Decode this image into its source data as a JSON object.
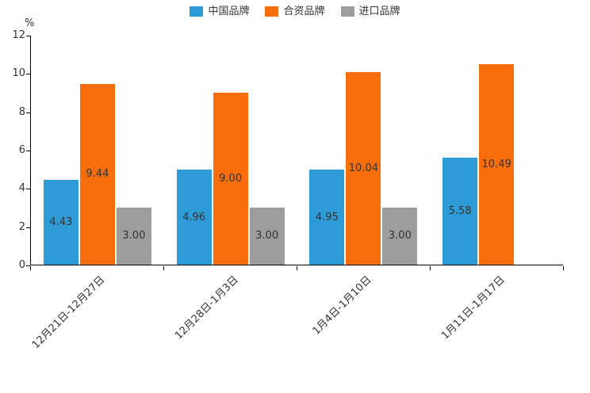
{
  "chart_data": {
    "type": "bar",
    "title": "",
    "xlabel": "",
    "ylabel": "%",
    "ylim": [
      0,
      12
    ],
    "yticks": [
      0,
      2,
      4,
      6,
      8,
      10,
      12
    ],
    "grid": false,
    "legend_position": "top",
    "categories": [
      "12月21日-12月27日",
      "12月28日-1月3日",
      "1月4日-1月10日",
      "1月11日-1月17日"
    ],
    "series": [
      {
        "name": "中国品牌",
        "color": "#2e9bd6",
        "values": [
          4.43,
          4.96,
          4.95,
          5.58
        ]
      },
      {
        "name": "合资品牌",
        "color": "#f86e0d",
        "values": [
          9.44,
          9.0,
          10.04,
          10.49
        ]
      },
      {
        "name": "进口品牌",
        "color": "#9d9d9d",
        "values": [
          3.0,
          3.0,
          3.0,
          null
        ]
      }
    ],
    "value_label_decimals": 2,
    "axis_color": "#000000",
    "label_color": "#333333"
  }
}
